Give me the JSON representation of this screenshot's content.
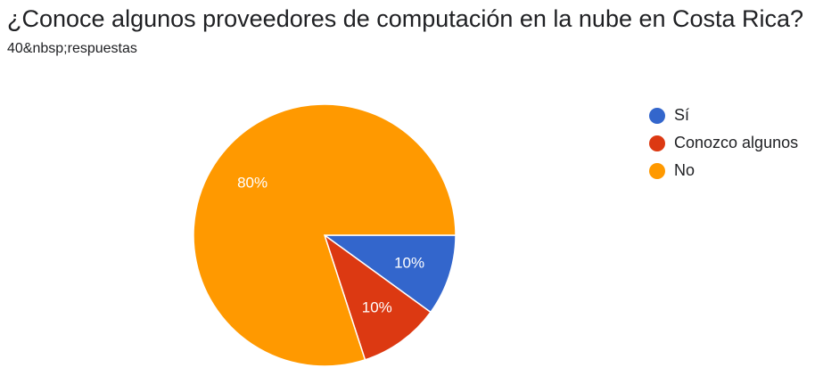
{
  "header": {
    "title": "¿Conoce algunos proveedores de computación en la nube en Costa Rica?",
    "responses": "40&nbsp;respuestas"
  },
  "chart_data": {
    "type": "pie",
    "legend_position": "right",
    "slices": [
      {
        "label": "Sí",
        "value": 10,
        "display": "10%",
        "color": "#3366cc"
      },
      {
        "label": "Conozco algunos",
        "value": 10,
        "display": "10%",
        "color": "#dc3912"
      },
      {
        "label": "No",
        "value": 80,
        "display": "80%",
        "color": "#ff9900"
      }
    ]
  }
}
